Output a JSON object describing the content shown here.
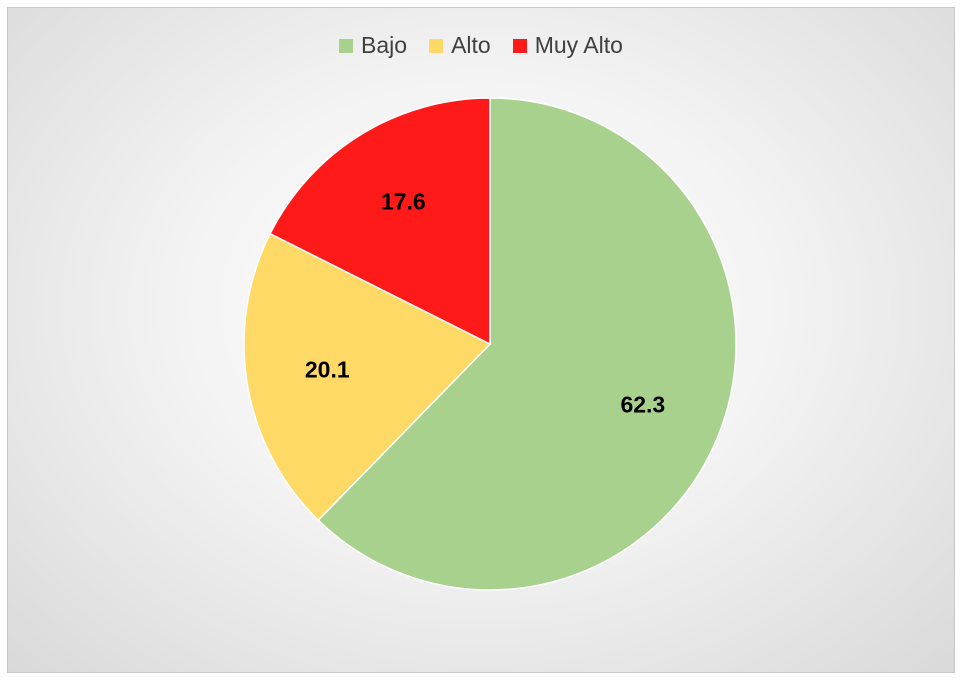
{
  "chart_data": {
    "type": "pie",
    "categories": [
      "Bajo",
      "Alto",
      "Muy Alto"
    ],
    "values": [
      62.3,
      20.1,
      17.6
    ],
    "data_labels": [
      "62.3",
      "20.1",
      "17.6"
    ],
    "colors": [
      "#a9d18e",
      "#ffd966",
      "#ff1a1a"
    ],
    "legend_position": "top",
    "title": ""
  }
}
